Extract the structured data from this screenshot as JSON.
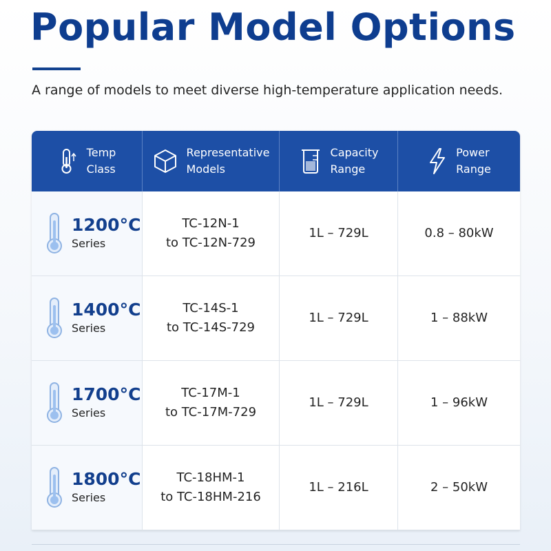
{
  "header": {
    "title": "Popular Model Options",
    "subtitle": "A range of models to meet diverse high-temperature application needs."
  },
  "table": {
    "columns": [
      [
        "Temp",
        "Class"
      ],
      [
        "Representative",
        "Models"
      ],
      [
        "Capacity",
        "Range"
      ],
      [
        "Power",
        "Range"
      ]
    ],
    "rows": [
      {
        "temp": "1200°C",
        "series": "Series",
        "models": [
          "TC-12N-1",
          "to TC-12N-729"
        ],
        "capacity": "1L – 729L",
        "power": "0.8 – 80kW"
      },
      {
        "temp": "1400°C",
        "series": "Series",
        "models": [
          "TC-14S-1",
          "to TC-14S-729"
        ],
        "capacity": "1L – 729L",
        "power": "1 – 88kW"
      },
      {
        "temp": "1700°C",
        "series": "Series",
        "models": [
          "TC-17M-1",
          "to TC-17M-729"
        ],
        "capacity": "1L – 729L",
        "power": "1 – 96kW"
      },
      {
        "temp": "1800°C",
        "series": "Series",
        "models": [
          "TC-18HM-1",
          "to TC-18HM-216"
        ],
        "capacity": "1L – 216L",
        "power": "2 – 50kW"
      }
    ]
  }
}
